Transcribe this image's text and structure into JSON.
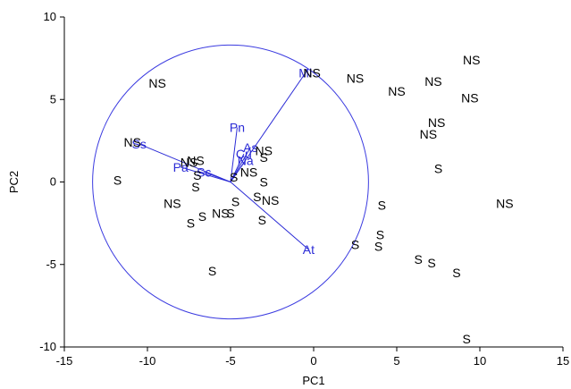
{
  "chart_data": {
    "type": "scatter",
    "title": "",
    "xlabel": "PC1",
    "ylabel": "PC2",
    "xlim": [
      -15,
      15
    ],
    "ylim": [
      -10,
      10
    ],
    "xticks": [
      -15,
      -10,
      -5,
      0,
      5,
      10,
      15
    ],
    "yticks": [
      -10,
      -5,
      0,
      5,
      10
    ],
    "grid": false,
    "colors": {
      "points": "#000000",
      "vectors": "#2b2bd6",
      "circle": "#3b3be0"
    },
    "circle": {
      "center": [
        -5,
        0
      ],
      "radius": 8.3
    },
    "points": [
      {
        "x": -9.4,
        "y": 6.0,
        "label": "NS"
      },
      {
        "x": -10.9,
        "y": 2.4,
        "label": "NS"
      },
      {
        "x": -11.8,
        "y": 0.1,
        "label": "S"
      },
      {
        "x": -8.5,
        "y": -1.3,
        "label": "NS"
      },
      {
        "x": -7.5,
        "y": 1.2,
        "label": "NS"
      },
      {
        "x": -7.1,
        "y": 1.3,
        "label": "NS"
      },
      {
        "x": -7.0,
        "y": 0.4,
        "label": "S"
      },
      {
        "x": -7.1,
        "y": -0.3,
        "label": "S"
      },
      {
        "x": -7.4,
        "y": -2.5,
        "label": "S"
      },
      {
        "x": -6.7,
        "y": -2.1,
        "label": "S"
      },
      {
        "x": -5.6,
        "y": -1.9,
        "label": "NS"
      },
      {
        "x": -5.0,
        "y": -1.9,
        "label": "S"
      },
      {
        "x": -4.7,
        "y": -1.2,
        "label": "S"
      },
      {
        "x": -4.8,
        "y": 0.3,
        "label": "S"
      },
      {
        "x": -3.9,
        "y": 0.6,
        "label": "NS"
      },
      {
        "x": -3.0,
        "y": 0.0,
        "label": "S"
      },
      {
        "x": -3.0,
        "y": 1.5,
        "label": "S"
      },
      {
        "x": -3.4,
        "y": -0.9,
        "label": "S"
      },
      {
        "x": -2.6,
        "y": -1.1,
        "label": "NS"
      },
      {
        "x": -3.1,
        "y": -2.3,
        "label": "S"
      },
      {
        "x": -3.0,
        "y": 1.9,
        "label": "NS"
      },
      {
        "x": -6.1,
        "y": -5.4,
        "label": "S"
      },
      {
        "x": -0.1,
        "y": 6.6,
        "label": "NS"
      },
      {
        "x": 2.5,
        "y": 6.3,
        "label": "NS"
      },
      {
        "x": 5.0,
        "y": 5.5,
        "label": "NS"
      },
      {
        "x": 7.2,
        "y": 6.1,
        "label": "NS"
      },
      {
        "x": 9.5,
        "y": 7.4,
        "label": "NS"
      },
      {
        "x": 9.4,
        "y": 5.1,
        "label": "NS"
      },
      {
        "x": 7.4,
        "y": 3.6,
        "label": "NS"
      },
      {
        "x": 6.9,
        "y": 2.9,
        "label": "NS"
      },
      {
        "x": 7.5,
        "y": 0.8,
        "label": "S"
      },
      {
        "x": 4.1,
        "y": -1.4,
        "label": "S"
      },
      {
        "x": 4.0,
        "y": -3.2,
        "label": "S"
      },
      {
        "x": 3.9,
        "y": -3.9,
        "label": "S"
      },
      {
        "x": 2.5,
        "y": -3.8,
        "label": "S"
      },
      {
        "x": 6.3,
        "y": -4.7,
        "label": "S"
      },
      {
        "x": 7.1,
        "y": -4.9,
        "label": "S"
      },
      {
        "x": 8.6,
        "y": -5.5,
        "label": "S"
      },
      {
        "x": 11.5,
        "y": -1.3,
        "label": "NS"
      },
      {
        "x": 9.2,
        "y": -9.5,
        "label": "S"
      }
    ],
    "vectors": [
      {
        "name": "Ss",
        "x": -10.5,
        "y": 2.3
      },
      {
        "name": "Pa",
        "x": -8.0,
        "y": 0.9
      },
      {
        "name": "Sc",
        "x": -6.6,
        "y": 0.6
      },
      {
        "name": "Pn",
        "x": -4.6,
        "y": 3.3
      },
      {
        "name": "As",
        "x": -3.8,
        "y": 2.1
      },
      {
        "name": "Cu",
        "x": -4.2,
        "y": 1.7
      },
      {
        "name": "Na",
        "x": -4.1,
        "y": 1.3
      },
      {
        "name": "Mi",
        "x": -0.5,
        "y": 6.6
      },
      {
        "name": "At",
        "x": -0.3,
        "y": -4.1
      }
    ]
  }
}
